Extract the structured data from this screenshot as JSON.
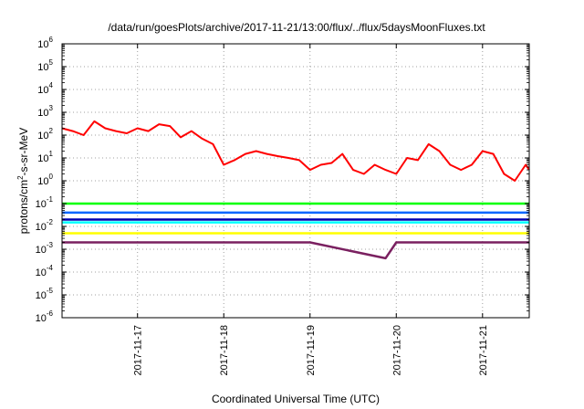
{
  "chart_data": {
    "type": "line",
    "title": "/data/run/goesPlots/archive/2017-11-21/13:00/flux/../flux/5daysMoonFluxes.txt",
    "xlabel": "Coordinated Universal Time (UTC)",
    "ylabel": {
      "prefix": "protons/cm",
      "sup": "2",
      "suffix": "-s-sr-MeV"
    },
    "yscale": "log",
    "ylim": [
      1e-06,
      1000000.0
    ],
    "y_ticks": [
      {
        "base": "10",
        "exp": "-6",
        "value": 1e-06
      },
      {
        "base": "10",
        "exp": "-5",
        "value": 1e-05
      },
      {
        "base": "10",
        "exp": "-4",
        "value": 0.0001
      },
      {
        "base": "10",
        "exp": "-3",
        "value": 0.001
      },
      {
        "base": "10",
        "exp": "-2",
        "value": 0.01
      },
      {
        "base": "10",
        "exp": "-1",
        "value": 0.1
      },
      {
        "base": "10",
        "exp": "0",
        "value": 1.0
      },
      {
        "base": "10",
        "exp": "1",
        "value": 10.0
      },
      {
        "base": "10",
        "exp": "2",
        "value": 100.0
      },
      {
        "base": "10",
        "exp": "3",
        "value": 1000.0
      },
      {
        "base": "10",
        "exp": "4",
        "value": 10000.0
      },
      {
        "base": "10",
        "exp": "5",
        "value": 100000.0
      },
      {
        "base": "10",
        "exp": "6",
        "value": 1000000.0
      }
    ],
    "xlim": [
      "2017-11-16 03:00",
      "2017-11-21 13:00"
    ],
    "x_ticks": [
      "2017-11-17",
      "2017-11-18",
      "2017-11-19",
      "2017-11-20",
      "2017-11-21"
    ],
    "grid": true,
    "legend": "none",
    "series": [
      {
        "color": "#ff0000",
        "x": [
          "2017-11-16 03:00",
          "2017-11-16 06:00",
          "2017-11-16 09:00",
          "2017-11-16 12:00",
          "2017-11-16 15:00",
          "2017-11-16 18:00",
          "2017-11-16 21:00",
          "2017-11-17 00:00",
          "2017-11-17 03:00",
          "2017-11-17 06:00",
          "2017-11-17 09:00",
          "2017-11-17 12:00",
          "2017-11-17 15:00",
          "2017-11-17 18:00",
          "2017-11-17 21:00",
          "2017-11-18 00:00",
          "2017-11-18 03:00",
          "2017-11-18 06:00",
          "2017-11-18 09:00",
          "2017-11-18 12:00",
          "2017-11-18 15:00",
          "2017-11-18 18:00",
          "2017-11-18 21:00",
          "2017-11-19 00:00",
          "2017-11-19 03:00",
          "2017-11-19 06:00",
          "2017-11-19 09:00",
          "2017-11-19 12:00",
          "2017-11-19 15:00",
          "2017-11-19 18:00",
          "2017-11-19 21:00",
          "2017-11-20 00:00",
          "2017-11-20 03:00",
          "2017-11-20 06:00",
          "2017-11-20 09:00",
          "2017-11-20 12:00",
          "2017-11-20 15:00",
          "2017-11-20 18:00",
          "2017-11-20 21:00",
          "2017-11-21 00:00",
          "2017-11-21 03:00",
          "2017-11-21 06:00",
          "2017-11-21 09:00",
          "2017-11-21 12:00",
          "2017-11-21 13:00"
        ],
        "values": [
          200,
          150,
          100,
          400,
          200,
          150,
          120,
          200,
          150,
          300,
          250,
          80,
          150,
          70,
          40,
          5,
          8,
          15,
          20,
          15,
          12,
          10,
          8,
          3,
          5,
          6,
          15,
          3,
          2,
          5,
          3,
          2,
          10,
          8,
          40,
          20,
          5,
          3,
          5,
          20,
          15,
          2,
          1,
          5,
          3
        ]
      },
      {
        "color": "#00ff00",
        "x": [
          "2017-11-16 03:00",
          "2017-11-17 00:00",
          "2017-11-18 00:00",
          "2017-11-19 00:00",
          "2017-11-20 00:00",
          "2017-11-21 00:00",
          "2017-11-21 13:00"
        ],
        "values": [
          0.1,
          0.1,
          0.1,
          0.1,
          0.1,
          0.1,
          0.1
        ]
      },
      {
        "color": "#00ffff",
        "x": [
          "2017-11-16 03:00",
          "2017-11-17 00:00",
          "2017-11-18 00:00",
          "2017-11-19 00:00",
          "2017-11-20 00:00",
          "2017-11-21 00:00",
          "2017-11-21 13:00"
        ],
        "values": [
          0.015,
          0.015,
          0.015,
          0.015,
          0.015,
          0.015,
          0.015
        ]
      },
      {
        "color": "#0066ff",
        "x": [
          "2017-11-16 03:00",
          "2017-11-17 00:00",
          "2017-11-18 00:00",
          "2017-11-19 00:00",
          "2017-11-20 00:00",
          "2017-11-21 00:00",
          "2017-11-21 13:00"
        ],
        "values": [
          0.04,
          0.04,
          0.04,
          0.04,
          0.04,
          0.04,
          0.04
        ]
      },
      {
        "color": "#0000b0",
        "x": [
          "2017-11-16 03:00",
          "2017-11-17 00:00",
          "2017-11-18 00:00",
          "2017-11-19 00:00",
          "2017-11-20 00:00",
          "2017-11-21 00:00",
          "2017-11-21 13:00"
        ],
        "values": [
          0.02,
          0.02,
          0.02,
          0.02,
          0.02,
          0.02,
          0.02
        ]
      },
      {
        "color": "#ffff00",
        "x": [
          "2017-11-16 03:00",
          "2017-11-17 00:00",
          "2017-11-18 00:00",
          "2017-11-19 00:00",
          "2017-11-20 00:00",
          "2017-11-21 00:00",
          "2017-11-21 13:00"
        ],
        "values": [
          0.005,
          0.005,
          0.005,
          0.005,
          0.005,
          0.005,
          0.005
        ]
      },
      {
        "color": "#7a2060",
        "x": [
          "2017-11-16 03:00",
          "2017-11-17 00:00",
          "2017-11-18 00:00",
          "2017-11-19 00:00",
          "2017-11-19 21:00",
          "2017-11-20 00:00",
          "2017-11-21 00:00",
          "2017-11-21 13:00"
        ],
        "values": [
          0.002,
          0.002,
          0.002,
          0.002,
          0.0004,
          0.002,
          0.002,
          0.002
        ]
      }
    ]
  }
}
